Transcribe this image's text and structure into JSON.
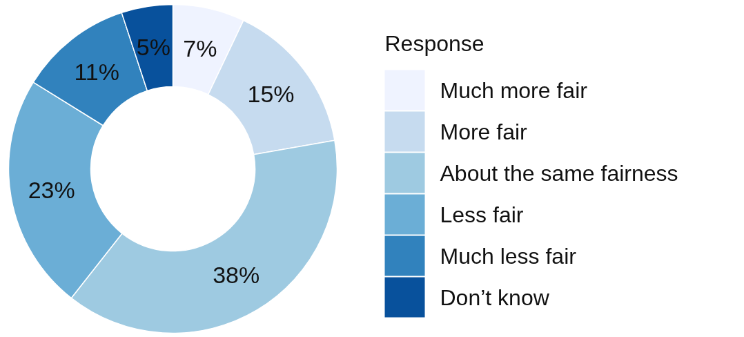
{
  "chart_data": {
    "type": "donut",
    "legend_title": "Response",
    "legend": "right",
    "categories": [
      "Much more fair",
      "More fair",
      "About the same fairness",
      "Less fair",
      "Much less fair",
      "Don’t know"
    ],
    "values": [
      7,
      15,
      38,
      23,
      11,
      5
    ],
    "value_labels": [
      "7%",
      "15%",
      "38%",
      "23%",
      "11%",
      "5%"
    ],
    "colors": [
      "#eff3ff",
      "#c6dbef",
      "#9ecae1",
      "#6baed6",
      "#3182bd",
      "#08519c"
    ]
  }
}
